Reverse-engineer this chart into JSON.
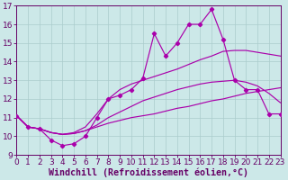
{
  "background_color": "#cce8e8",
  "grid_color": "#aacccc",
  "line_color": "#aa00aa",
  "xlabel": "Windchill (Refroidissement éolien,°C)",
  "xlim": [
    0,
    23
  ],
  "ylim": [
    9,
    17
  ],
  "xticks": [
    0,
    1,
    2,
    3,
    4,
    5,
    6,
    7,
    8,
    9,
    10,
    11,
    12,
    13,
    14,
    15,
    16,
    17,
    18,
    19,
    20,
    21,
    22,
    23
  ],
  "yticks": [
    9,
    10,
    11,
    12,
    13,
    14,
    15,
    16,
    17
  ],
  "tick_fontsize": 6.5,
  "xlabel_fontsize": 7.2,
  "line_bottom_y": [
    11.1,
    10.5,
    10.4,
    10.2,
    10.1,
    10.15,
    10.3,
    10.5,
    10.7,
    10.85,
    11.0,
    11.1,
    11.2,
    11.35,
    11.5,
    11.6,
    11.75,
    11.9,
    12.0,
    12.15,
    12.3,
    12.4,
    12.5,
    12.6
  ],
  "line_mid_y": [
    11.1,
    10.5,
    10.4,
    10.2,
    10.1,
    10.15,
    10.3,
    10.6,
    11.0,
    11.3,
    11.6,
    11.9,
    12.1,
    12.3,
    12.5,
    12.65,
    12.8,
    12.9,
    12.95,
    13.0,
    12.9,
    12.7,
    12.3,
    11.8
  ],
  "line_upper_smooth_y": [
    11.1,
    10.5,
    10.4,
    10.2,
    10.1,
    10.2,
    10.5,
    11.2,
    12.0,
    12.5,
    12.8,
    13.0,
    13.2,
    13.4,
    13.6,
    13.85,
    14.1,
    14.3,
    14.55,
    14.6,
    14.6,
    14.5,
    14.4,
    14.3
  ],
  "line_zigzag_y": [
    11.1,
    10.5,
    10.4,
    9.8,
    9.5,
    9.6,
    10.0,
    11.0,
    12.0,
    12.2,
    12.5,
    13.1,
    15.5,
    14.3,
    15.0,
    16.0,
    16.0,
    16.8,
    15.2,
    13.0,
    12.5,
    12.5,
    11.2,
    11.2
  ]
}
